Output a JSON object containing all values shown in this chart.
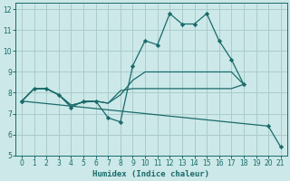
{
  "xlabel": "Humidex (Indice chaleur)",
  "bg_color": "#cce8e8",
  "grid_color": "#aacccc",
  "line_color": "#1a6b6b",
  "xlim": [
    -0.5,
    21.5
  ],
  "ylim": [
    5,
    12.3
  ],
  "xticks": [
    0,
    1,
    2,
    3,
    4,
    5,
    6,
    7,
    8,
    9,
    10,
    11,
    12,
    13,
    14,
    15,
    16,
    17,
    18,
    19,
    20,
    21
  ],
  "yticks": [
    5,
    6,
    7,
    8,
    9,
    10,
    11,
    12
  ],
  "series1_x": [
    0,
    1,
    2,
    3,
    4,
    5,
    6,
    7,
    8,
    9,
    10,
    11,
    12,
    13,
    14,
    15,
    16,
    17,
    18
  ],
  "series1_y": [
    7.6,
    8.2,
    8.2,
    7.9,
    7.3,
    7.6,
    7.6,
    6.8,
    6.6,
    9.3,
    10.5,
    10.3,
    11.8,
    11.3,
    11.3,
    11.8,
    10.5,
    9.6,
    8.4
  ],
  "series2_x": [
    0,
    1,
    2,
    3,
    4,
    5,
    6,
    7,
    8,
    9,
    10,
    11,
    12,
    13,
    14,
    15,
    16,
    17,
    18
  ],
  "series2_y": [
    7.6,
    8.2,
    8.2,
    7.9,
    7.4,
    7.55,
    7.6,
    7.5,
    8.1,
    8.2,
    8.2,
    8.2,
    8.2,
    8.2,
    8.2,
    8.2,
    8.2,
    8.2,
    8.4
  ],
  "series3_x": [
    0,
    1,
    2,
    3,
    4,
    5,
    6,
    7,
    8,
    9,
    10,
    11,
    12,
    13,
    14,
    15,
    16,
    17,
    18
  ],
  "series3_y": [
    7.6,
    8.2,
    8.2,
    7.9,
    7.4,
    7.55,
    7.6,
    7.5,
    7.9,
    8.6,
    9.0,
    9.0,
    9.0,
    9.0,
    9.0,
    9.0,
    9.0,
    9.0,
    8.4
  ],
  "series4_x": [
    0,
    20,
    21
  ],
  "series4_y": [
    7.6,
    6.4,
    5.4
  ]
}
